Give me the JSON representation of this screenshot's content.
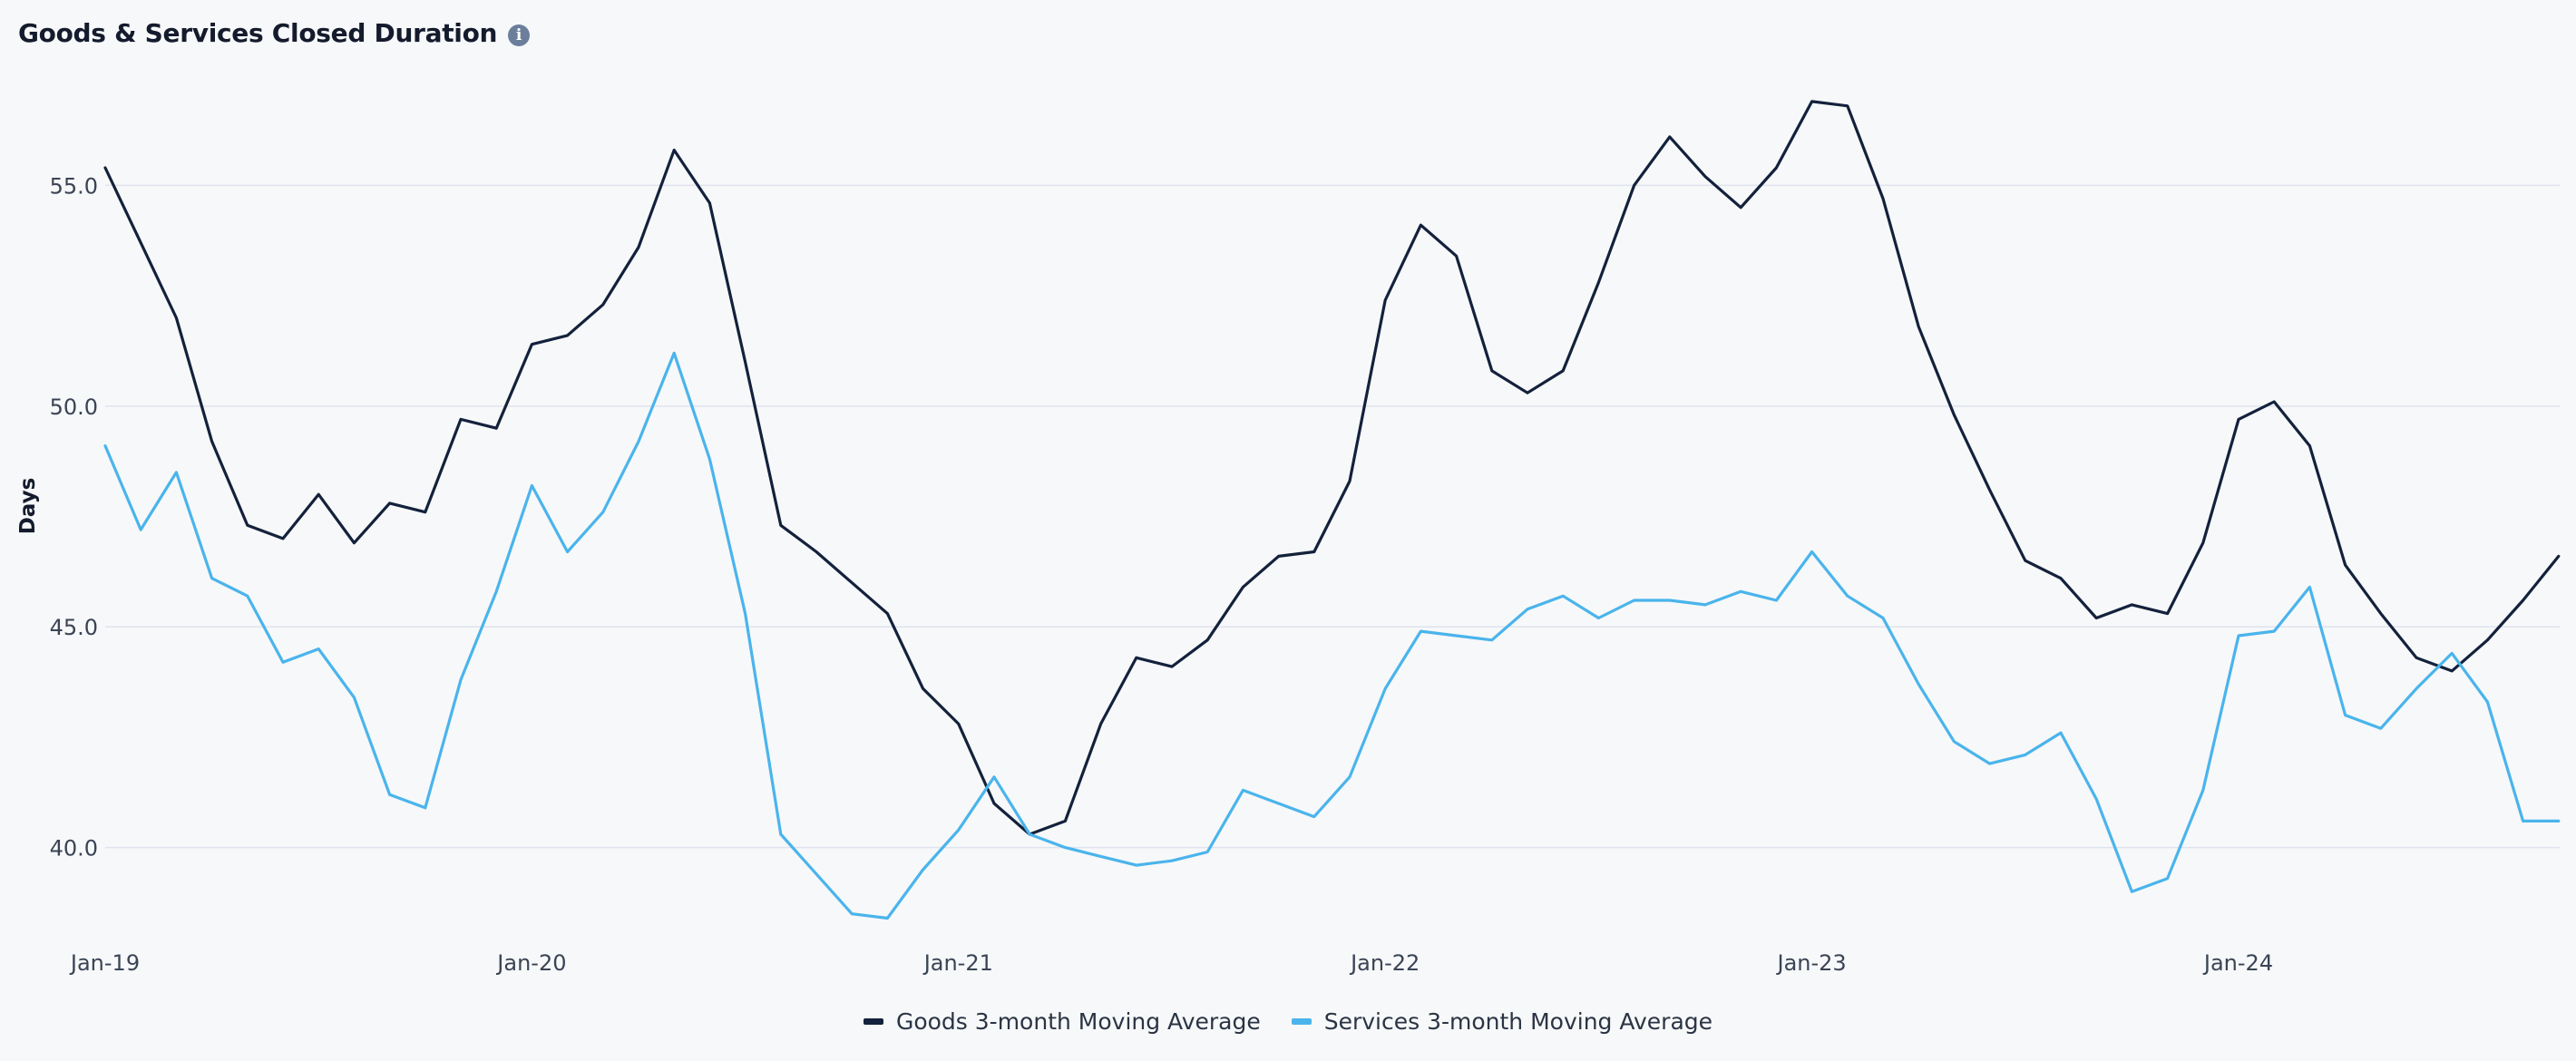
{
  "header": {
    "title": "Goods & Services Closed Duration",
    "info_icon": "info-icon"
  },
  "colors": {
    "goods": "#13213c",
    "services": "#4ab4ec",
    "grid": "#dfe3ef",
    "tick": "#3a4455"
  },
  "legend": {
    "goods_label": "Goods 3-month Moving Average",
    "services_label": "Services 3-month Moving Average"
  },
  "chart_data": {
    "type": "line",
    "title": "Goods & Services Closed Duration",
    "xlabel": "",
    "ylabel": "Days",
    "ylim": [
      38.0,
      57.7
    ],
    "yticks": [
      40.0,
      45.0,
      50.0,
      55.0
    ],
    "ytick_labels": [
      "40.0",
      "45.0",
      "50.0",
      "55.0"
    ],
    "x_tick_labels": [
      "Jan-19",
      "Jan-20",
      "Jan-21",
      "Jan-22",
      "Jan-23",
      "Jan-24"
    ],
    "x_start": "2019-01",
    "x_end": "2024-12",
    "grid": true,
    "legend_position": "bottom-center",
    "series": [
      {
        "name": "Goods 3-month Moving Average",
        "values": [
          55.4,
          53.7,
          52.0,
          49.2,
          47.3,
          47.0,
          48.0,
          46.9,
          47.8,
          47.6,
          49.7,
          49.5,
          51.4,
          51.6,
          52.3,
          53.6,
          55.8,
          54.6,
          51.0,
          47.3,
          46.7,
          46.0,
          45.3,
          43.6,
          42.8,
          41.0,
          40.3,
          40.6,
          42.8,
          44.3,
          44.1,
          44.7,
          45.9,
          46.6,
          46.7,
          48.3,
          52.4,
          54.1,
          53.4,
          50.8,
          50.3,
          50.8,
          52.8,
          55.0,
          56.1,
          55.2,
          54.5,
          55.4,
          56.9,
          56.8,
          54.7,
          51.8,
          49.8,
          48.1,
          46.5,
          46.1,
          45.2,
          45.5,
          45.3,
          46.9,
          49.7,
          50.1,
          49.1,
          46.4,
          45.3,
          44.3,
          44.0,
          44.7,
          45.6,
          46.6
        ]
      },
      {
        "name": "Services 3-month Moving Average",
        "values": [
          49.1,
          47.2,
          48.5,
          46.1,
          45.7,
          44.2,
          44.5,
          43.4,
          41.2,
          40.9,
          43.8,
          45.8,
          48.2,
          46.7,
          47.6,
          49.2,
          51.2,
          48.8,
          45.3,
          40.3,
          39.4,
          38.5,
          38.4,
          39.5,
          40.4,
          41.6,
          40.3,
          40.0,
          39.8,
          39.6,
          39.7,
          39.9,
          41.3,
          41.0,
          40.7,
          41.6,
          43.6,
          44.9,
          44.8,
          44.7,
          45.4,
          45.7,
          45.2,
          45.6,
          45.6,
          45.5,
          45.8,
          45.6,
          46.7,
          45.7,
          45.2,
          43.7,
          42.4,
          41.9,
          42.1,
          42.6,
          41.1,
          39.0,
          39.3,
          41.3,
          44.8,
          44.9,
          45.9,
          43.0,
          42.7,
          43.6,
          44.4,
          43.3,
          40.6,
          40.6
        ]
      }
    ]
  }
}
